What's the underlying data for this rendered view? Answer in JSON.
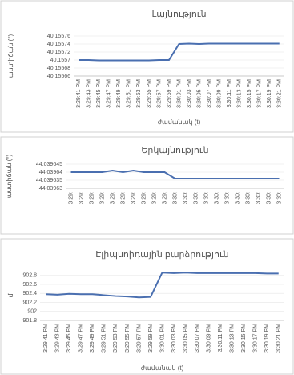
{
  "chart_data": [
    {
      "type": "line",
      "title": "Լայնություն",
      "xlabel": "ժամանակ (t)",
      "ylabel": "աստիճան (°)",
      "categories": [
        "3:29:41 PM",
        "3:29:43 PM",
        "3:29:45 PM",
        "3:29:47 PM",
        "3:29:49 PM",
        "3:29:51 PM",
        "3:29:53 PM",
        "3:29:55 PM",
        "3:29:57 PM",
        "3:29:59 PM",
        "3:30:01 PM",
        "3:30:03 PM",
        "3:30:05 PM",
        "3:30:07 PM",
        "3:30:09 PM",
        "3:30:11 PM",
        "3:30:13 PM",
        "3:30:15 PM",
        "3:30:17 PM",
        "3:30:19 PM",
        "3:30:21 PM"
      ],
      "values": [
        40.1557,
        40.1557,
        40.155699,
        40.155699,
        40.155699,
        40.155699,
        40.155699,
        40.155699,
        40.1557,
        40.1557,
        40.15574,
        40.155741,
        40.15574,
        40.155741,
        40.155741,
        40.155741,
        40.155741,
        40.155741,
        40.155741,
        40.155741,
        40.155741
      ],
      "color": "#4a6fb0",
      "ylim": [
        40.15566,
        40.15576
      ],
      "yticks": [
        40.15566,
        40.15568,
        40.1557,
        40.15572,
        40.15574,
        40.15576
      ],
      "grid": true
    },
    {
      "type": "line",
      "title": "Երկայնություն",
      "ylabel": "աստիճան (°)",
      "categories": [
        "3:29:",
        "3:29:",
        "3:29:",
        "3:29:",
        "3:29:",
        "3:29:",
        "3:29:",
        "3:29:",
        "3:29:",
        "3:29:",
        "3:30:",
        "3:30:",
        "3:30:",
        "3:30:",
        "3:30:",
        "3:30:",
        "3:30:",
        "3:30:",
        "3:30:",
        "3:30:",
        "3:30:"
      ],
      "values": [
        44.03964,
        44.03964,
        44.03964,
        44.03964,
        44.039641,
        44.03964,
        44.039641,
        44.03964,
        44.03964,
        44.03964,
        44.039636,
        44.039636,
        44.039636,
        44.039636,
        44.039636,
        44.039636,
        44.039636,
        44.039636,
        44.039636,
        44.039636,
        44.039636
      ],
      "color": "#4a6fb0",
      "ylim": [
        44.03963,
        44.039645
      ],
      "yticks": [
        44.03963,
        44.039635,
        44.03964,
        44.039645
      ],
      "grid": true
    },
    {
      "type": "line",
      "title": "Էլիպսոիդային բարձրություն",
      "xlabel": "ժամանակ (t)",
      "ylabel": "մ",
      "categories": [
        "3:29:41 PM",
        "3:29:43 PM",
        "3:29:45 PM",
        "3:29:47 PM",
        "3:29:49 PM",
        "3:29:51 PM",
        "3:29:53 PM",
        "3:29:55 PM",
        "3:29:57 PM",
        "3:29:59 PM",
        "3:30:01 PM",
        "3:30:03 PM",
        "3:30:05 PM",
        "3:30:07 PM",
        "3:30:09 PM",
        "3:30:11 PM",
        "3:30:13 PM",
        "3:30:15 PM",
        "3:30:17 PM",
        "3:30:19 PM",
        "3:30:21 PM"
      ],
      "values": [
        902.38,
        902.37,
        902.39,
        902.38,
        902.38,
        902.36,
        902.34,
        902.33,
        902.31,
        902.32,
        902.86,
        902.85,
        902.86,
        902.85,
        902.85,
        902.85,
        902.85,
        902.85,
        902.85,
        902.84,
        902.84
      ],
      "color": "#4a6fb0",
      "ylim": [
        901.8,
        902.9
      ],
      "yticks": [
        901.8,
        902,
        902.2,
        902.4,
        902.6,
        902.8
      ],
      "grid": true
    }
  ]
}
